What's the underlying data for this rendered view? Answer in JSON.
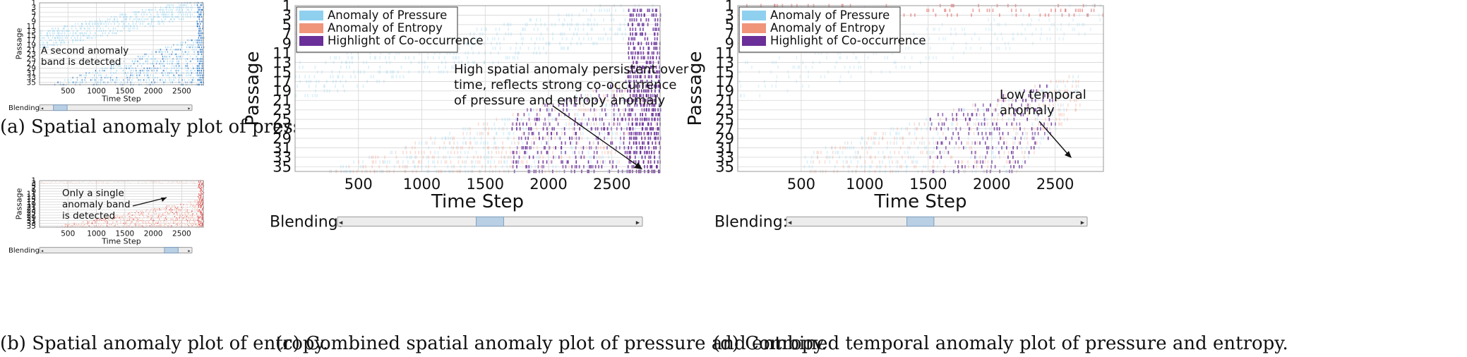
{
  "colors": {
    "pressure": "#8fd0ef",
    "pressure_strong": "#1f6fc4",
    "entropy": "#f0957a",
    "entropy_strong": "#d8201c",
    "cooccurrence": "#6a2f98",
    "grid": "#d6d6d6",
    "axis": "#999999"
  },
  "slider": {
    "label": "Blending:"
  },
  "chart_data": [
    {
      "id": "a",
      "type": "heatmap",
      "xlabel": "Time Step",
      "ylabel": "Passage",
      "xticks": [
        500,
        1000,
        1500,
        2000,
        2500
      ],
      "xlim": [
        0,
        2880
      ],
      "yticks": [
        1,
        3,
        5,
        7,
        9,
        11,
        13,
        15,
        17,
        19,
        21,
        23,
        25,
        27,
        29,
        31,
        33,
        35
      ],
      "ylim": [
        1,
        36
      ],
      "mode": "pressure",
      "annotation": [
        "A second anomaly",
        "band is detected"
      ],
      "caption": "(a) Spatial anomaly plot of pressure.",
      "slider_thumb": 0.1
    },
    {
      "id": "b",
      "type": "heatmap",
      "xlabel": "Time Step",
      "ylabel": "Passage",
      "xticks": [
        500,
        1000,
        1500,
        2000,
        2500
      ],
      "xlim": [
        0,
        2880
      ],
      "yticks": [
        1,
        3,
        5,
        7,
        9,
        11,
        13,
        15,
        17,
        19,
        21,
        23,
        25,
        27,
        29,
        31,
        33,
        35
      ],
      "ylim": [
        1,
        36
      ],
      "mode": "entropy",
      "annotation": [
        "Only a single",
        "anomaly band",
        "is detected"
      ],
      "caption": "(b) Spatial anomaly plot of entropy.",
      "slider_thumb": 0.9
    },
    {
      "id": "c",
      "type": "heatmap",
      "xlabel": "Time Step",
      "ylabel": "Passage",
      "xticks": [
        500,
        1000,
        1500,
        2000,
        2500
      ],
      "xlim": [
        0,
        2880
      ],
      "yticks": [
        1,
        3,
        5,
        7,
        9,
        11,
        13,
        15,
        17,
        19,
        21,
        23,
        25,
        27,
        29,
        31,
        33,
        35
      ],
      "ylim": [
        1,
        36
      ],
      "mode": "combined-spatial",
      "legend": [
        "Anomaly of Pressure",
        "Anomaly of Entropy",
        "Highlight of Co-occurrence"
      ],
      "legend_position": "top-left",
      "annotation": [
        "High spatial anomaly persistent over",
        "time, reflects strong co-occurrence",
        "of pressure and entropy anomaly"
      ],
      "caption": "(c) Combined spatial anomaly plot of pressure and entropy.",
      "slider_thumb": 0.5
    },
    {
      "id": "d",
      "type": "heatmap",
      "xlabel": "Time Step",
      "ylabel": "Passage",
      "xticks": [
        500,
        1000,
        1500,
        2000,
        2500
      ],
      "xlim": [
        0,
        2880
      ],
      "yticks": [
        1,
        3,
        5,
        7,
        9,
        11,
        13,
        15,
        17,
        19,
        21,
        23,
        25,
        27,
        29,
        31,
        33,
        35
      ],
      "ylim": [
        1,
        36
      ],
      "mode": "combined-temporal",
      "legend": [
        "Anomaly of Pressure",
        "Anomaly of Entropy",
        "Highlight of Co-occurrence"
      ],
      "legend_position": "top-left",
      "annotation": [
        "Low temporal",
        "anomaly"
      ],
      "caption": "(d) Combined temporal anomaly plot of pressure and entropy.",
      "slider_thumb": 0.44
    }
  ]
}
